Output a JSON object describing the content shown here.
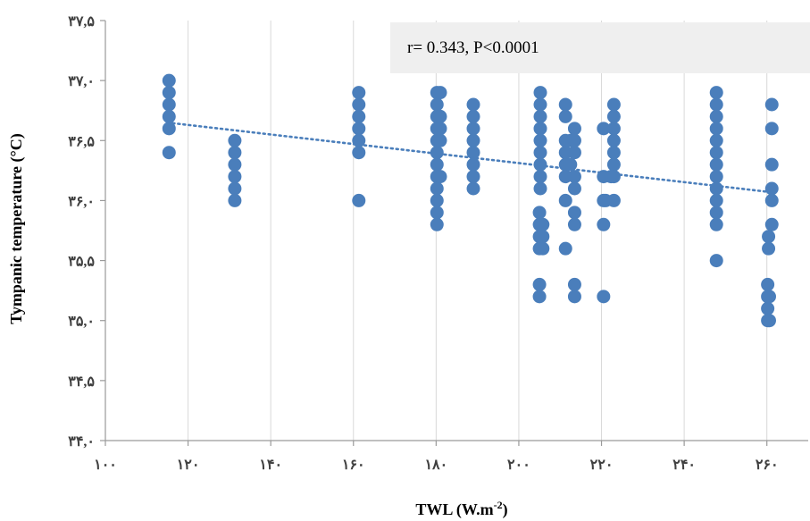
{
  "chart_data": {
    "type": "scatter",
    "xlabel_main": "TWL (W.m",
    "xlabel_sup": "-2",
    "xlabel_end": ")",
    "ylabel": "Tympanic temperature (°C)",
    "annotation": "r= 0.343, P<0.0001",
    "xlim": [
      100,
      270
    ],
    "ylim": [
      34.0,
      37.5
    ],
    "x_ticks": [
      100,
      120,
      140,
      160,
      180,
      200,
      220,
      240,
      260
    ],
    "x_tick_labels": [
      "۱۰۰",
      "۱۲۰",
      "۱۴۰",
      "۱۶۰",
      "۱۸۰",
      "۲۰۰",
      "۲۲۰",
      "۲۴۰",
      "۲۶۰"
    ],
    "y_ticks": [
      34.0,
      34.5,
      35.0,
      35.5,
      36.0,
      36.5,
      37.0,
      37.5
    ],
    "y_tick_labels": [
      "۳۴,۰",
      "۳۴,۵",
      "۳۵,۰",
      "۳۵,۵",
      "۳۶,۰",
      "۳۶,۵",
      "۳۷,۰",
      "۳۷,۵"
    ],
    "grid": "vertical",
    "marker_color": "#4a7ebb",
    "trendline": {
      "style": "dotted",
      "from": [
        115,
        36.65
      ],
      "to": [
        261,
        36.07
      ]
    },
    "points": [
      [
        115.4,
        37.0
      ],
      [
        115.4,
        36.9
      ],
      [
        115.4,
        36.8
      ],
      [
        115.4,
        36.7
      ],
      [
        115.4,
        36.6
      ],
      [
        115.4,
        36.4
      ],
      [
        131.3,
        36.5
      ],
      [
        131.3,
        36.4
      ],
      [
        131.3,
        36.3
      ],
      [
        131.3,
        36.2
      ],
      [
        131.3,
        36.1
      ],
      [
        131.3,
        36.0
      ],
      [
        161.3,
        36.9
      ],
      [
        161.3,
        36.8
      ],
      [
        161.3,
        36.7
      ],
      [
        161.3,
        36.6
      ],
      [
        161.3,
        36.5
      ],
      [
        161.3,
        36.4
      ],
      [
        161.3,
        36.0
      ],
      [
        180.2,
        36.9
      ],
      [
        180.2,
        36.8
      ],
      [
        180.2,
        36.7
      ],
      [
        180.2,
        36.6
      ],
      [
        180.2,
        36.5
      ],
      [
        180.2,
        36.4
      ],
      [
        180.2,
        36.3
      ],
      [
        180.2,
        36.2
      ],
      [
        180.2,
        36.1
      ],
      [
        180.2,
        36.0
      ],
      [
        180.2,
        35.9
      ],
      [
        180.2,
        35.8
      ],
      [
        181.0,
        36.9
      ],
      [
        181.0,
        36.7
      ],
      [
        181.0,
        36.6
      ],
      [
        181.0,
        36.5
      ],
      [
        181.0,
        36.2
      ],
      [
        189.0,
        36.8
      ],
      [
        189.0,
        36.7
      ],
      [
        189.0,
        36.6
      ],
      [
        189.0,
        36.5
      ],
      [
        189.0,
        36.4
      ],
      [
        189.0,
        36.3
      ],
      [
        189.0,
        36.2
      ],
      [
        189.0,
        36.1
      ],
      [
        205.2,
        36.9
      ],
      [
        205.2,
        36.8
      ],
      [
        205.2,
        36.7
      ],
      [
        205.2,
        36.6
      ],
      [
        205.2,
        36.5
      ],
      [
        205.2,
        36.4
      ],
      [
        205.2,
        36.3
      ],
      [
        205.2,
        36.2
      ],
      [
        205.2,
        36.1
      ],
      [
        205.0,
        35.9
      ],
      [
        205.0,
        35.8
      ],
      [
        205.0,
        35.7
      ],
      [
        205.0,
        35.6
      ],
      [
        205.0,
        35.3
      ],
      [
        205.0,
        35.2
      ],
      [
        205.8,
        35.8
      ],
      [
        205.8,
        35.7
      ],
      [
        205.8,
        35.6
      ],
      [
        211.3,
        36.8
      ],
      [
        211.3,
        36.7
      ],
      [
        211.3,
        36.5
      ],
      [
        211.3,
        36.4
      ],
      [
        211.3,
        36.3
      ],
      [
        211.3,
        36.2
      ],
      [
        211.3,
        36.0
      ],
      [
        211.3,
        35.6
      ],
      [
        212.5,
        36.5
      ],
      [
        212.5,
        36.3
      ],
      [
        213.5,
        36.6
      ],
      [
        213.5,
        36.5
      ],
      [
        213.5,
        36.4
      ],
      [
        213.5,
        36.2
      ],
      [
        213.5,
        36.1
      ],
      [
        213.5,
        35.9
      ],
      [
        213.5,
        35.8
      ],
      [
        213.5,
        35.3
      ],
      [
        213.5,
        35.2
      ],
      [
        220.5,
        36.6
      ],
      [
        220.5,
        36.2
      ],
      [
        220.5,
        36.0
      ],
      [
        220.5,
        35.8
      ],
      [
        220.5,
        35.2
      ],
      [
        221.0,
        36.0
      ],
      [
        223.0,
        36.8
      ],
      [
        223.0,
        36.7
      ],
      [
        223.0,
        36.6
      ],
      [
        223.0,
        36.5
      ],
      [
        223.0,
        36.4
      ],
      [
        223.0,
        36.3
      ],
      [
        223.0,
        36.2
      ],
      [
        223.0,
        36.0
      ],
      [
        222.3,
        36.2
      ],
      [
        247.8,
        36.9
      ],
      [
        247.8,
        36.8
      ],
      [
        247.8,
        36.7
      ],
      [
        247.8,
        36.6
      ],
      [
        247.8,
        36.5
      ],
      [
        247.8,
        36.4
      ],
      [
        247.8,
        36.3
      ],
      [
        247.8,
        36.2
      ],
      [
        247.8,
        36.1
      ],
      [
        247.8,
        36.0
      ],
      [
        247.8,
        35.9
      ],
      [
        247.8,
        35.8
      ],
      [
        247.8,
        35.5
      ],
      [
        261.2,
        36.8
      ],
      [
        261.2,
        36.6
      ],
      [
        261.2,
        36.3
      ],
      [
        261.2,
        36.1
      ],
      [
        261.2,
        36.0
      ],
      [
        261.2,
        35.8
      ],
      [
        260.4,
        35.7
      ],
      [
        260.4,
        35.6
      ],
      [
        260.2,
        35.3
      ],
      [
        260.2,
        35.2
      ],
      [
        260.2,
        35.1
      ],
      [
        260.2,
        35.0
      ],
      [
        260.6,
        35.0
      ],
      [
        260.6,
        35.2
      ]
    ]
  }
}
